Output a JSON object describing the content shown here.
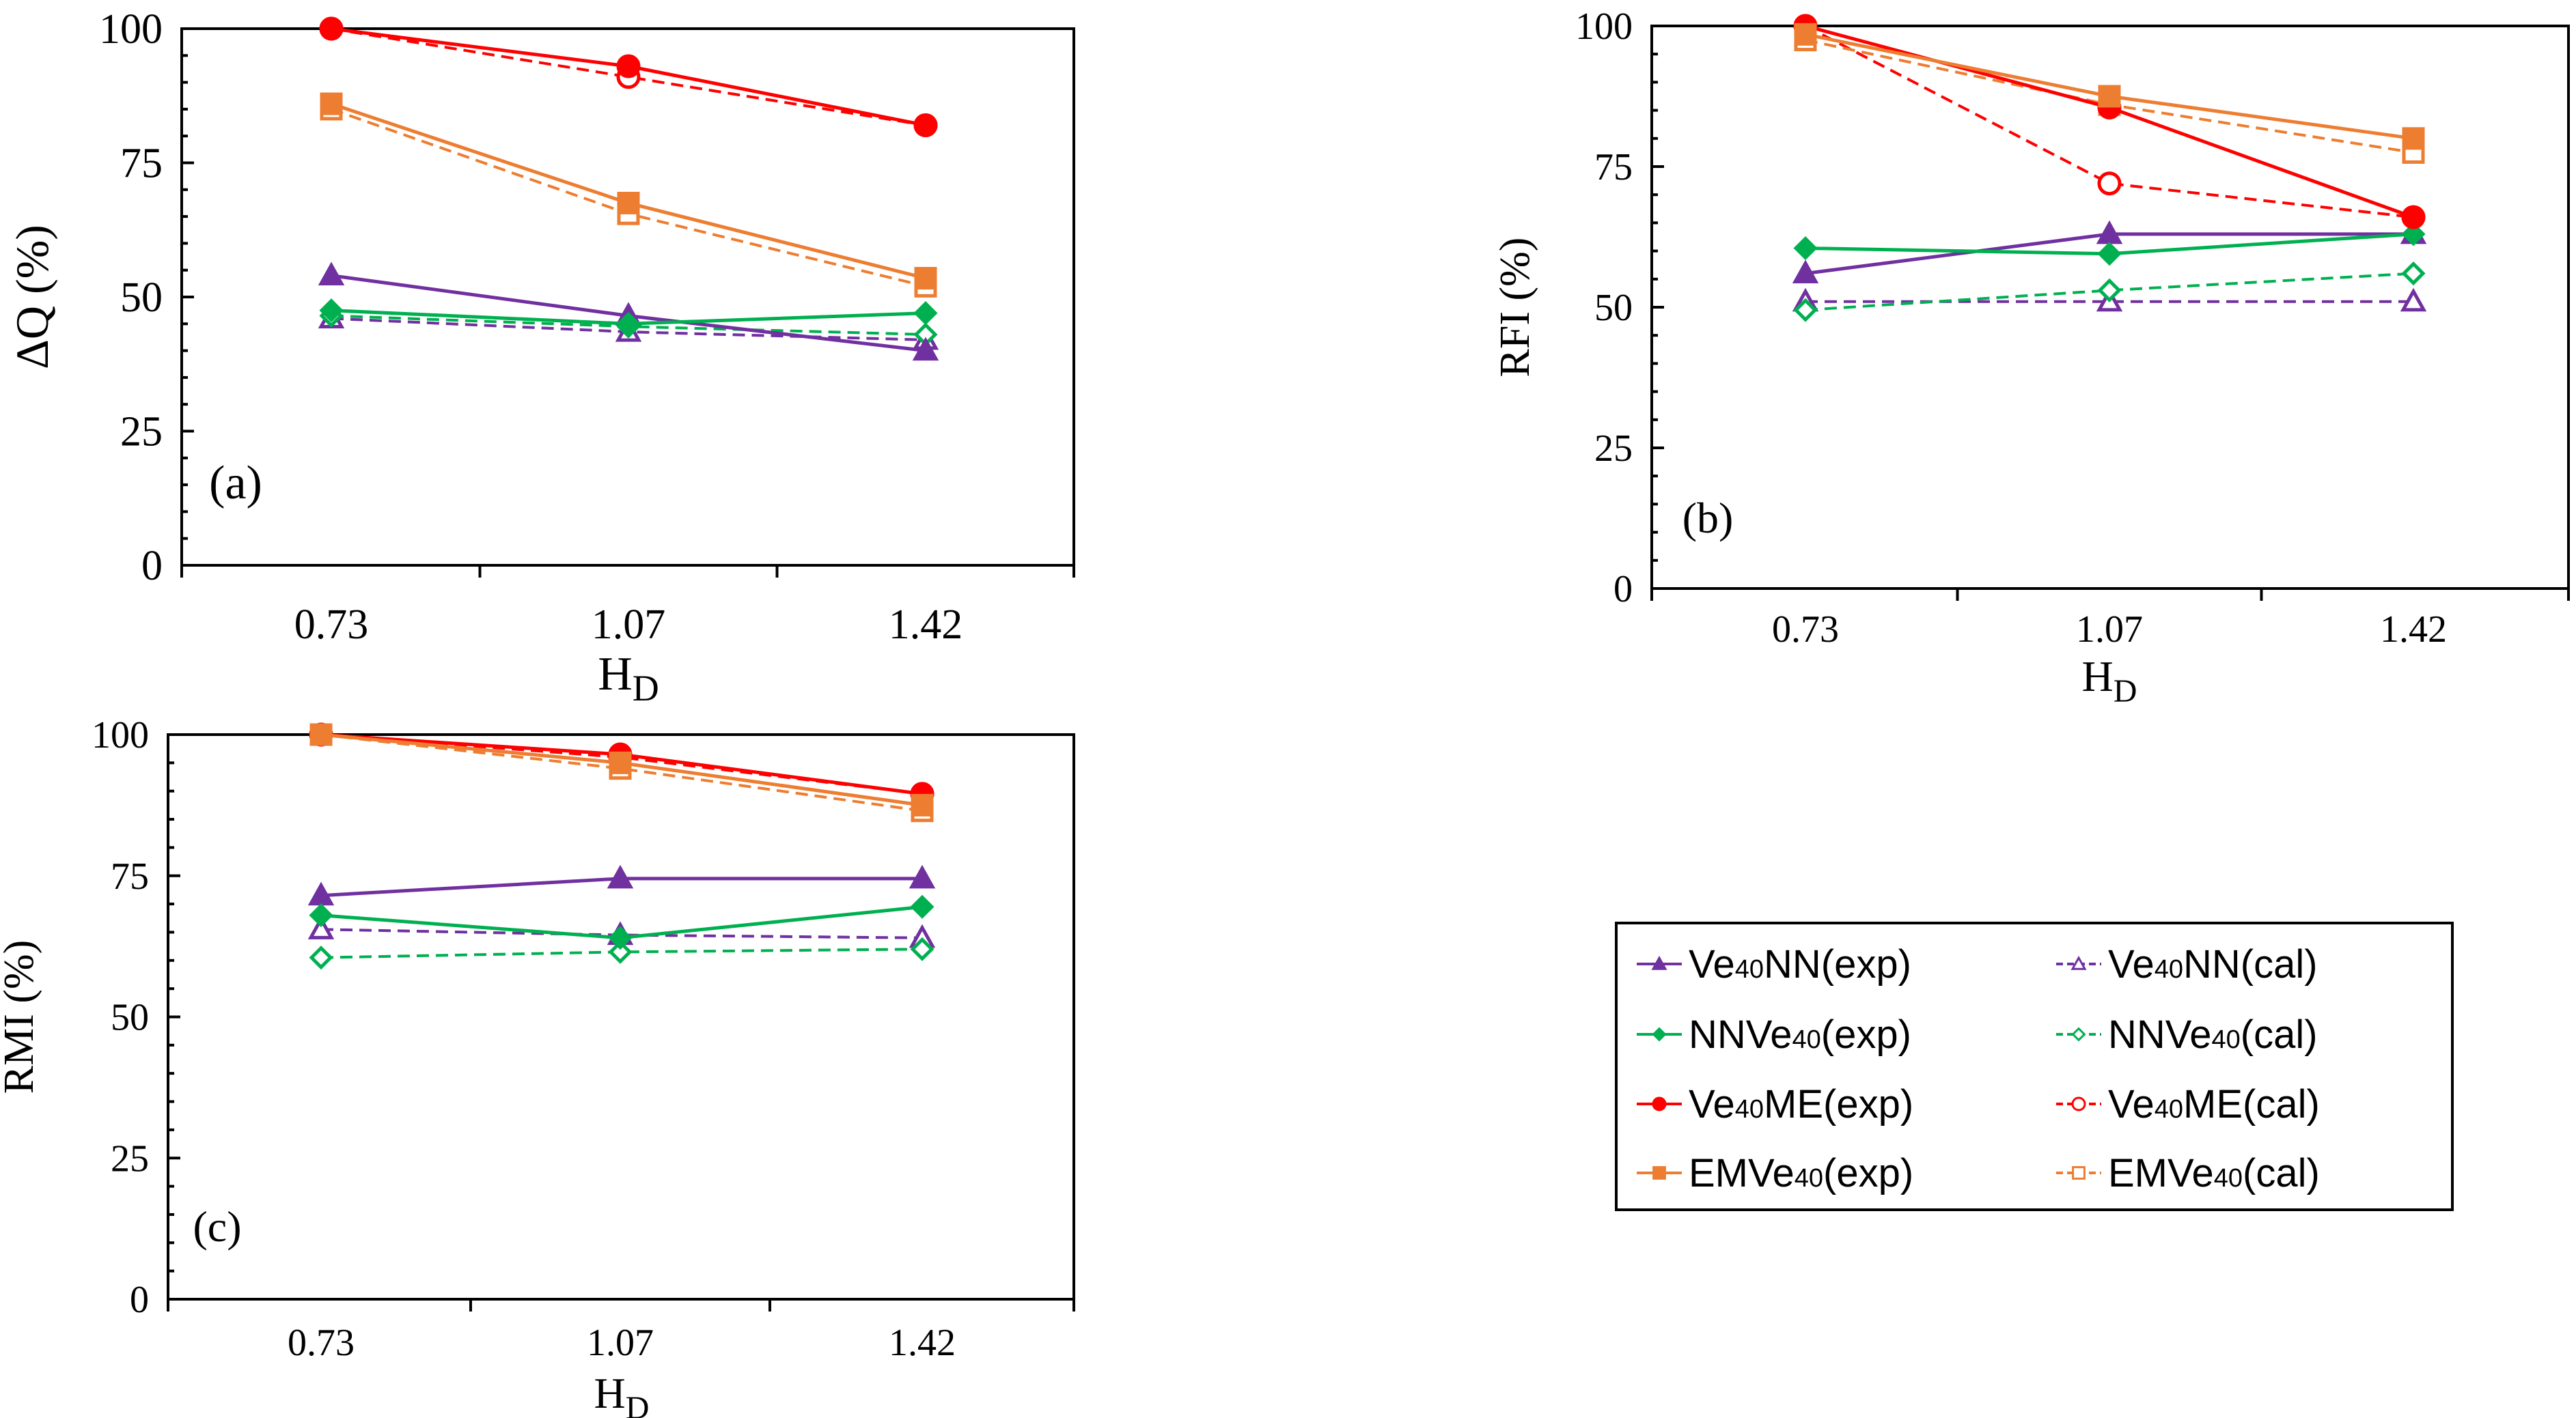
{
  "colors": {
    "Ve40NN": "#7030a0",
    "NNVe40": "#00b050",
    "Ve40ME": "#ff0000",
    "EMVe40": "#ed7d31"
  },
  "chart_data": [
    {
      "type": "line",
      "panel_label": "(a)",
      "xlabel_main": "H",
      "xlabel_sub": "D",
      "ylabel": "ΔQ (%)",
      "categories": [
        "0.73",
        "1.07",
        "1.42"
      ],
      "ylim": [
        0,
        100
      ],
      "yticks": [
        "0",
        "25",
        "50",
        "75",
        "100"
      ],
      "series": [
        {
          "key": "Ve40NN",
          "mode": "exp",
          "marker": "triangle",
          "values": [
            54,
            46.5,
            40
          ]
        },
        {
          "key": "NNVe40",
          "mode": "exp",
          "marker": "diamond",
          "values": [
            47.5,
            45,
            47
          ]
        },
        {
          "key": "Ve40ME",
          "mode": "exp",
          "marker": "circle",
          "values": [
            100,
            93,
            82
          ]
        },
        {
          "key": "EMVe40",
          "mode": "exp",
          "marker": "square",
          "values": [
            86,
            67.5,
            53.5
          ]
        },
        {
          "key": "Ve40NN",
          "mode": "cal",
          "marker": "triangle",
          "values": [
            46,
            43.5,
            42
          ]
        },
        {
          "key": "NNVe40",
          "mode": "cal",
          "marker": "diamond",
          "values": [
            46.5,
            44.5,
            43
          ]
        },
        {
          "key": "Ve40ME",
          "mode": "cal",
          "marker": "circle",
          "values": [
            100,
            91,
            82
          ]
        },
        {
          "key": "EMVe40",
          "mode": "cal",
          "marker": "square",
          "values": [
            85,
            65.5,
            52
          ]
        }
      ]
    },
    {
      "type": "line",
      "panel_label": "(b)",
      "xlabel_main": "H",
      "xlabel_sub": "D",
      "ylabel": "RFI (%)",
      "categories": [
        "0.73",
        "1.07",
        "1.42"
      ],
      "ylim": [
        0,
        100
      ],
      "yticks": [
        "0",
        "25",
        "50",
        "75",
        "100"
      ],
      "series": [
        {
          "key": "Ve40NN",
          "mode": "exp",
          "marker": "triangle",
          "values": [
            56,
            63,
            63
          ]
        },
        {
          "key": "NNVe40",
          "mode": "exp",
          "marker": "diamond",
          "values": [
            60.5,
            59.5,
            63
          ]
        },
        {
          "key": "Ve40ME",
          "mode": "exp",
          "marker": "circle",
          "values": [
            100,
            85.5,
            66
          ]
        },
        {
          "key": "EMVe40",
          "mode": "exp",
          "marker": "square",
          "values": [
            98.5,
            87.5,
            80
          ]
        },
        {
          "key": "Ve40NN",
          "mode": "cal",
          "marker": "triangle",
          "values": [
            51,
            51,
            51
          ]
        },
        {
          "key": "NNVe40",
          "mode": "cal",
          "marker": "diamond",
          "values": [
            49.5,
            53,
            56
          ]
        },
        {
          "key": "Ve40ME",
          "mode": "cal",
          "marker": "circle",
          "values": [
            100,
            72,
            66
          ]
        },
        {
          "key": "EMVe40",
          "mode": "cal",
          "marker": "square",
          "values": [
            97.5,
            86,
            77.5
          ]
        }
      ]
    },
    {
      "type": "line",
      "panel_label": "(c)",
      "xlabel_main": "H",
      "xlabel_sub": "D",
      "ylabel": "RMI (%)",
      "categories": [
        "0.73",
        "1.07",
        "1.42"
      ],
      "ylim": [
        0,
        100
      ],
      "yticks": [
        "0",
        "25",
        "50",
        "75",
        "100"
      ],
      "series": [
        {
          "key": "Ve40NN",
          "mode": "exp",
          "marker": "triangle",
          "values": [
            71.5,
            74.5,
            74.5
          ]
        },
        {
          "key": "NNVe40",
          "mode": "exp",
          "marker": "diamond",
          "values": [
            68,
            64,
            69.5
          ]
        },
        {
          "key": "Ve40ME",
          "mode": "exp",
          "marker": "circle",
          "values": [
            100,
            96.5,
            89.5
          ]
        },
        {
          "key": "EMVe40",
          "mode": "exp",
          "marker": "square",
          "values": [
            100,
            95,
            87.5
          ]
        },
        {
          "key": "Ve40NN",
          "mode": "cal",
          "marker": "triangle",
          "values": [
            65.5,
            64.5,
            64
          ]
        },
        {
          "key": "NNVe40",
          "mode": "cal",
          "marker": "diamond",
          "values": [
            60.5,
            61.5,
            62
          ]
        },
        {
          "key": "Ve40ME",
          "mode": "cal",
          "marker": "circle",
          "values": [
            100,
            96,
            89.5
          ]
        },
        {
          "key": "EMVe40",
          "mode": "cal",
          "marker": "square",
          "values": [
            100,
            94,
            86.5
          ]
        }
      ]
    }
  ],
  "legend": {
    "placement": "bottom-right",
    "items": [
      {
        "key": "Ve40NN",
        "mode": "exp",
        "marker": "triangle",
        "prefix": "Ve",
        "sub": "40",
        "suffix": "NN(exp)"
      },
      {
        "key": "Ve40NN",
        "mode": "cal",
        "marker": "triangle",
        "prefix": "Ve",
        "sub": "40",
        "suffix": "NN(cal)"
      },
      {
        "key": "NNVe40",
        "mode": "exp",
        "marker": "diamond",
        "prefix": "NNVe",
        "sub": "40",
        "suffix": "(exp)"
      },
      {
        "key": "NNVe40",
        "mode": "cal",
        "marker": "diamond",
        "prefix": "NNVe",
        "sub": "40",
        "suffix": "(cal)"
      },
      {
        "key": "Ve40ME",
        "mode": "exp",
        "marker": "circle",
        "prefix": "Ve",
        "sub": "40",
        "suffix": "ME(exp)"
      },
      {
        "key": "Ve40ME",
        "mode": "cal",
        "marker": "circle",
        "prefix": "Ve",
        "sub": "40",
        "suffix": "ME(cal)"
      },
      {
        "key": "EMVe40",
        "mode": "exp",
        "marker": "square",
        "prefix": "EMVe",
        "sub": "40",
        "suffix": "(exp)"
      },
      {
        "key": "EMVe40",
        "mode": "cal",
        "marker": "square",
        "prefix": "EMVe",
        "sub": "40",
        "suffix": "(cal)"
      }
    ]
  }
}
